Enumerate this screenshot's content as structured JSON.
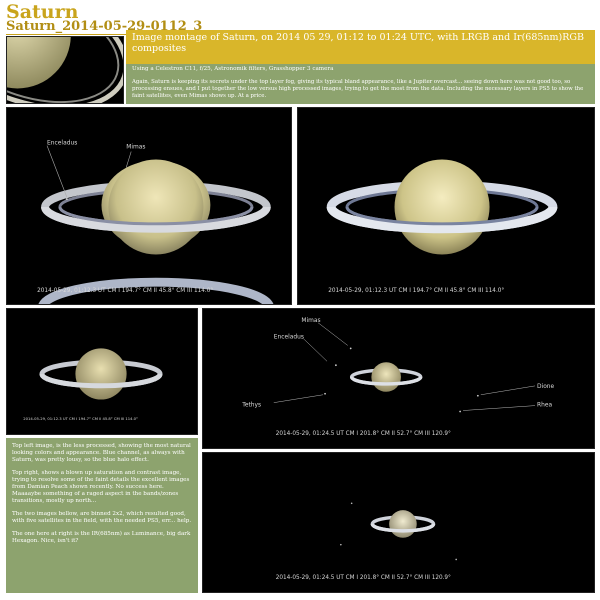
{
  "title": "Saturn",
  "subtitle": "Saturn_2014-05-29-0112_3",
  "header": "Image montage of Saturn, on 2014 05 29, 01:12 to 01:24 UTC, with LRGB and Ir(685nm)RGB composites",
  "equipment": "Using a Celestron C11, f/25, Astronomik filters, Grasshopper 3 camera",
  "description": "Again, Saturn is keeping its secrets under the top layer fog, giving its typical bland appearance, like a Jupiter overcast... seeing down here was not good too, so processing ensues, and I put together the low versus high processed images, trying to get the most from the data. Including the necessary layers in PS5 to show the faint satellites, even Mimas shows up. At a price.",
  "side_notes": [
    "Top left image, is the less processed, showing the most natural looking colors and appearance. Blue channel, as always with Saturn, was pretty lousy, so the blue halo effect.",
    "Top right, shows a blown up saturation and contrast image, trying to resolve some of the faint details the excellent images from Damian Peach shown recently. No success here. Maaaaybe something of a raged aspect in the bands/zones transitions, mostly up north...",
    "The two images bellow, are binned 2x2, which resulted good, with five satellites in the field, with the needed PS5, err... help.",
    "The one here at right is the IR(685nm) as Luminance, big dark Hexagon. Nice, isn't it?"
  ],
  "labels": {
    "enceladus": "Enceladus",
    "mimas": "Mimas",
    "tethys": "Tethys",
    "dione": "Dione",
    "rhea": "Rhea"
  },
  "captions": {
    "a": "2014-05-29, 01:12.3 UT  CM I 194.7° CM II  45.8° CM III 114.0°",
    "b": "2014-05-29, 01:12.3 UT  CM I 194.7° CM II  45.8° CM III 114.0°",
    "c": "2014-05-29, 01:12.3 UT  CM I 194.7° CM II  45.8° CM III 114.0°",
    "d": "2014-05-29, 01:24.5 UT  CM I 201.8° CM II  52.7° CM III 120.9°",
    "e": "2014-05-29, 01:24.5 UT  CM I 201.8° CM II  52.7° CM III 120.9°"
  }
}
